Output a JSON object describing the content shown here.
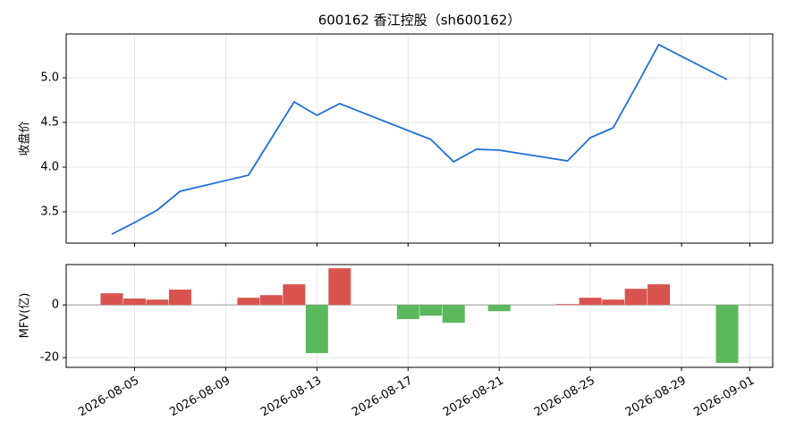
{
  "chart_data": [
    {
      "type": "line",
      "title": "600162 香江控股（sh600162）",
      "y_label": "收盘价",
      "x": [
        "2026-08-04",
        "2026-08-05",
        "2026-08-06",
        "2026-08-07",
        "2026-08-10",
        "2026-08-11",
        "2026-08-12",
        "2026-08-13",
        "2026-08-14",
        "2026-08-18",
        "2026-08-19",
        "2026-08-20",
        "2026-08-21",
        "2026-08-24",
        "2026-08-25",
        "2026-08-26",
        "2026-08-27",
        "2026-08-28",
        "2026-08-31"
      ],
      "series": [
        {
          "name": "收盘价",
          "color": "#1f6fd8",
          "values": [
            3.25,
            3.38,
            3.52,
            3.73,
            3.91,
            4.32,
            4.73,
            4.58,
            4.71,
            4.31,
            4.06,
            4.2,
            4.19,
            4.07,
            4.33,
            4.44,
            4.9,
            5.37,
            4.98
          ]
        }
      ],
      "xlim": [
        "2026-08-02",
        "2026-09-02"
      ],
      "ylim": [
        3.15,
        5.49
      ],
      "yticks": [
        3.5,
        {
          "value": 4.0,
          "label": "4.0"
        },
        4.5,
        {
          "value": 5.0,
          "label": "5.0"
        }
      ],
      "grid": true
    },
    {
      "type": "bar",
      "y_label": "MFV(亿)",
      "x": [
        "2026-08-04",
        "2026-08-05",
        "2026-08-06",
        "2026-08-07",
        "2026-08-10",
        "2026-08-11",
        "2026-08-12",
        "2026-08-13",
        "2026-08-14",
        "2026-08-17",
        "2026-08-18",
        "2026-08-19",
        "2026-08-21",
        "2026-08-24",
        "2026-08-25",
        "2026-08-26",
        "2026-08-27",
        "2026-08-28",
        "2026-08-31"
      ],
      "values": [
        4.4,
        2.4,
        2.0,
        5.8,
        2.7,
        3.7,
        7.8,
        -18.3,
        13.9,
        -5.4,
        -4.1,
        -6.8,
        -2.4,
        0.3,
        2.7,
        2.0,
        6.1,
        7.8,
        -22.0
      ],
      "positive_color": "#d9534f",
      "negative_color": "#5cb85c",
      "xlim": [
        "2026-08-02",
        "2026-09-02"
      ],
      "xticks": [
        "2026-08-05",
        "2026-08-09",
        "2026-08-13",
        "2026-08-17",
        "2026-08-21",
        "2026-08-25",
        "2026-08-29",
        "2026-09-01"
      ],
      "ylim": [
        -23.7,
        15.3
      ],
      "yticks": [
        -20,
        0
      ],
      "grid": true
    }
  ]
}
